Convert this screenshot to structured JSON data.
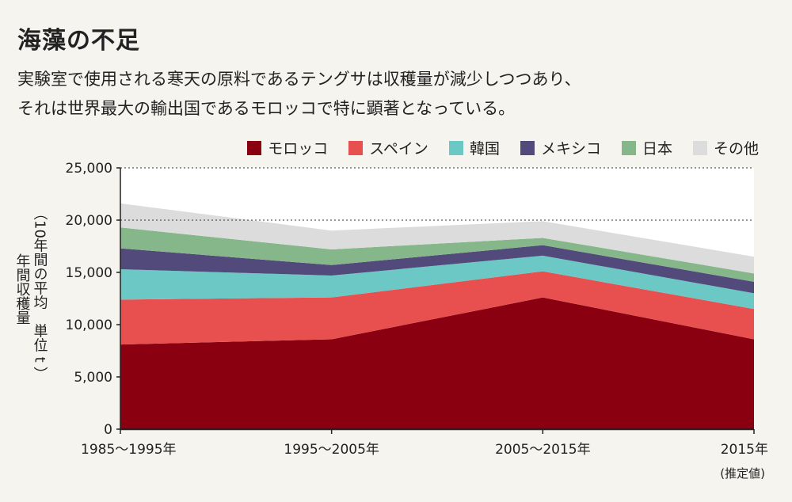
{
  "title": "海藻の不足",
  "subtitle_lines": [
    "実験室で使用される寒天の原料であるテングサは収穫量が減少しつつあり、",
    "それは世界最大の輸出国であるモロッコで特に顕著となっている。"
  ],
  "chart_data": {
    "type": "area",
    "stacked": true,
    "x": [
      "1985〜1995年",
      "1995〜2005年",
      "2005〜2015年",
      "2015年"
    ],
    "x_note": "(推定値)",
    "ylabel_lines": [
      "年間収穫量",
      "（10年間の平均　単位 t ）"
    ],
    "ylim": [
      0,
      25000
    ],
    "yticks": [
      0,
      5000,
      10000,
      15000,
      20000,
      25000
    ],
    "ytick_labels": [
      "0",
      "5,000",
      "10,000",
      "15,000",
      "20,000",
      "25,000"
    ],
    "grid": "dotted horizontal at 20,000 and 25,000",
    "legend_position": "top-right",
    "series": [
      {
        "name": "モロッコ",
        "color": "#8b0011",
        "values": [
          8100,
          8600,
          12600,
          8600
        ]
      },
      {
        "name": "スペイン",
        "color": "#e8504f",
        "values": [
          4300,
          4000,
          2500,
          2900
        ]
      },
      {
        "name": "韓国",
        "color": "#6cc8c4",
        "values": [
          2900,
          2100,
          1500,
          1500
        ]
      },
      {
        "name": "メキシコ",
        "color": "#524a7a",
        "values": [
          2000,
          1000,
          1000,
          1100
        ]
      },
      {
        "name": "日本",
        "color": "#86b78a",
        "values": [
          2000,
          1500,
          700,
          800
        ]
      },
      {
        "name": "その他",
        "color": "#dcdcdc",
        "values": [
          2300,
          1800,
          1600,
          1600
        ]
      }
    ]
  }
}
